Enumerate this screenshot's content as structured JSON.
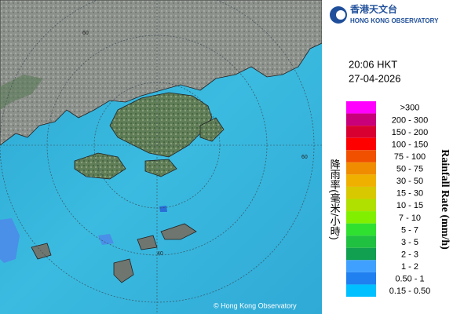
{
  "header": {
    "logo_chinese": "香港天文台",
    "logo_english": "HONG KONG OBSERVATORY",
    "time": "20:06 HKT",
    "date": "27-04-2026"
  },
  "map": {
    "ring_labels": [
      "60",
      "60",
      "40"
    ],
    "copyright": "© Hong Kong Observatory"
  },
  "legend": {
    "title_chinese": "降雨率(毫米/小時)",
    "title_english": "Rainfall Rate (mm/h)",
    "items": [
      {
        "label": ">300",
        "color": "#ff00ff"
      },
      {
        "label": "200 - 300",
        "color": "#c8007a"
      },
      {
        "label": "150 - 200",
        "color": "#d80030"
      },
      {
        "label": "100 - 150",
        "color": "#ff0000"
      },
      {
        "label": "75 - 100",
        "color": "#f05000"
      },
      {
        "label": "50 - 75",
        "color": "#f08c00"
      },
      {
        "label": "30 - 50",
        "color": "#f0b000"
      },
      {
        "label": "15 - 30",
        "color": "#d8c800"
      },
      {
        "label": "10 - 15",
        "color": "#b0e000"
      },
      {
        "label": "7 - 10",
        "color": "#80f000"
      },
      {
        "label": "5 - 7",
        "color": "#30e030"
      },
      {
        "label": "3 - 5",
        "color": "#20c040"
      },
      {
        "label": "2 - 3",
        "color": "#10a050"
      },
      {
        "label": "1 - 2",
        "color": "#40a0ff"
      },
      {
        "label": "0.50 - 1",
        "color": "#2080f0"
      },
      {
        "label": "0.15 - 0.50",
        "color": "#00c0ff"
      }
    ]
  }
}
